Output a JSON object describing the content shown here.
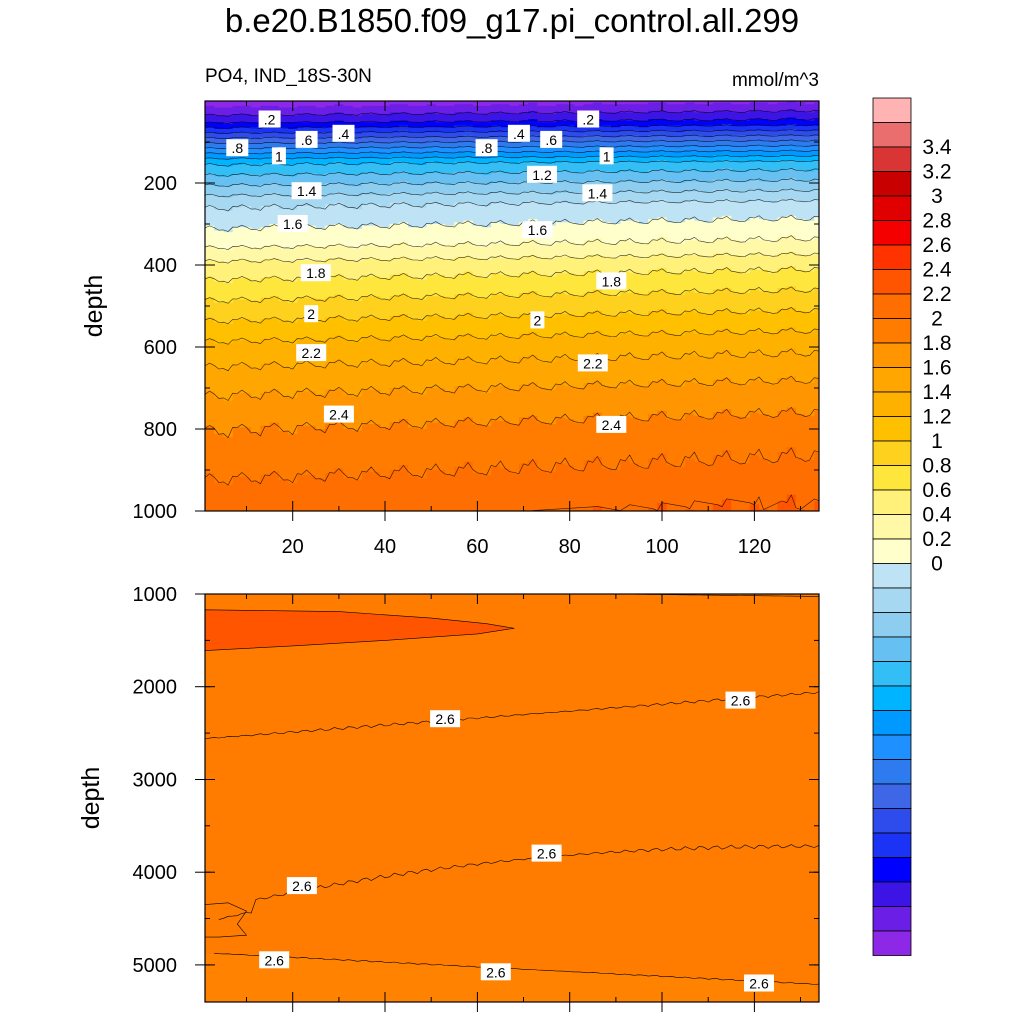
{
  "title": "b.e20.B1850.f09_g17.pi_control.all.299",
  "chart_data": [
    {
      "type": "heatmap",
      "variable": "PO4",
      "region": "IND_18S-30N",
      "left_label": "PO4, IND_18S-30N",
      "units": "mmol/m^3",
      "ylabel": "depth",
      "xlabel": "",
      "xlim": [
        1,
        134
      ],
      "ylim": [
        1000,
        0
      ],
      "xticks": [
        "20",
        "40",
        "60",
        "80",
        "100",
        "120"
      ],
      "yticks": [
        "200",
        "400",
        "600",
        "800",
        "1000"
      ],
      "grid": false,
      "contour_interval": 0.1,
      "depth_profile": {
        "depth": [
          30,
          50,
          100,
          150,
          200,
          250,
          300,
          350,
          400,
          450,
          500,
          600,
          700,
          800,
          900,
          950,
          1000
        ],
        "po4": [
          0.1,
          0.2,
          0.6,
          1.0,
          1.2,
          1.4,
          1.5,
          1.6,
          1.75,
          1.85,
          1.95,
          2.15,
          2.3,
          2.42,
          2.5,
          2.55,
          2.58
        ]
      },
      "contour_labels": [
        {
          "text": ".2",
          "x": 15,
          "depth": 45
        },
        {
          "text": ".2",
          "x": 84,
          "depth": 45
        },
        {
          "text": ".4",
          "x": 31,
          "depth": 80
        },
        {
          "text": ".4",
          "x": 69,
          "depth": 80
        },
        {
          "text": ".6",
          "x": 23,
          "depth": 95
        },
        {
          "text": ".6",
          "x": 76,
          "depth": 95
        },
        {
          "text": ".8",
          "x": 8,
          "depth": 115
        },
        {
          "text": ".8",
          "x": 62,
          "depth": 115
        },
        {
          "text": "1",
          "x": 17,
          "depth": 135
        },
        {
          "text": "1",
          "x": 88,
          "depth": 135
        },
        {
          "text": "1.2",
          "x": 74,
          "depth": 180
        },
        {
          "text": "1.4",
          "x": 23,
          "depth": 220
        },
        {
          "text": "1.4",
          "x": 86,
          "depth": 225
        },
        {
          "text": "1.6",
          "x": 20,
          "depth": 300
        },
        {
          "text": "1.6",
          "x": 73,
          "depth": 315
        },
        {
          "text": "1.8",
          "x": 25,
          "depth": 420
        },
        {
          "text": "1.8",
          "x": 89,
          "depth": 440
        },
        {
          "text": "2",
          "x": 24,
          "depth": 520
        },
        {
          "text": "2",
          "x": 73,
          "depth": 535
        },
        {
          "text": "2.2",
          "x": 24,
          "depth": 615
        },
        {
          "text": "2.2",
          "x": 85,
          "depth": 640
        },
        {
          "text": "2.4",
          "x": 30,
          "depth": 765
        },
        {
          "text": "2.4",
          "x": 89,
          "depth": 790
        }
      ]
    },
    {
      "type": "heatmap",
      "variable": "PO4",
      "ylabel": "depth",
      "xlabel": "",
      "xlim": [
        1,
        134
      ],
      "ylim": [
        5400,
        1000
      ],
      "yticks": [
        "1000",
        "2000",
        "3000",
        "4000",
        "5000"
      ],
      "grid": false,
      "regions": [
        {
          "value_range": "2.6–2.7",
          "description": "background"
        },
        {
          "value_range": "2.7–2.8",
          "description": "tongue near 1000–1600 m at x < 70"
        }
      ],
      "contour_labels": [
        {
          "text": "2.6",
          "x": 117,
          "depth": 2150
        },
        {
          "text": "2.6",
          "x": 53,
          "depth": 2350
        },
        {
          "text": "2.6",
          "x": 75,
          "depth": 3800
        },
        {
          "text": "2.6",
          "x": 22,
          "depth": 4150
        },
        {
          "text": "2.6",
          "x": 16,
          "depth": 4950
        },
        {
          "text": "2.6",
          "x": 64,
          "depth": 5080
        },
        {
          "text": "2.6",
          "x": 121,
          "depth": 5200
        }
      ]
    }
  ],
  "colorbar": {
    "labels": [
      "0",
      "0.2",
      "0.4",
      "0.6",
      "0.8",
      "1",
      "1.2",
      "1.4",
      "1.6",
      "1.8",
      "2",
      "2.2",
      "2.4",
      "2.6",
      "2.8",
      "3",
      "3.2",
      "3.4"
    ],
    "colors": [
      "#FFB3B3",
      "#EB6E6E",
      "#DA3535",
      "#C80000",
      "#E10000",
      "#F50000",
      "#FF3300",
      "#FF5500",
      "#FF6E00",
      "#FF7C00",
      "#FF9500",
      "#FFA600",
      "#FFB100",
      "#FFC000",
      "#FFD11F",
      "#FFE63D",
      "#FFF17A",
      "#FFF8A6",
      "#FFFFCC",
      "#BEE3F5",
      "#A6D8F2",
      "#8CCDF0",
      "#66C1F2",
      "#33BFF5",
      "#00B4FF",
      "#0099FF",
      "#1E90FF",
      "#2E7BF0",
      "#3D67E6",
      "#2E4CEB",
      "#1A33F5",
      "#0000FF",
      "#3C14E6",
      "#6A1EE6",
      "#8C28E6"
    ]
  }
}
